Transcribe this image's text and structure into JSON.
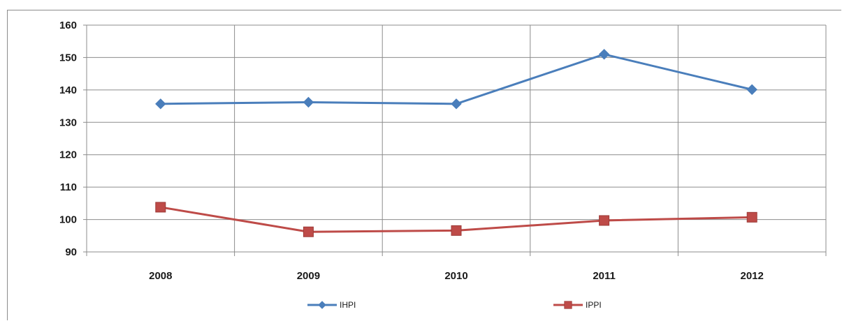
{
  "chart_data": {
    "type": "line",
    "categories": [
      "2008",
      "2009",
      "2010",
      "2011",
      "2012"
    ],
    "series": [
      {
        "name": "IHPI",
        "values": [
          135.7,
          136.2,
          135.7,
          151.0,
          140.1
        ],
        "color": "#4a7ebb",
        "marker": "diamond"
      },
      {
        "name": "IPPI",
        "values": [
          103.8,
          96.2,
          96.6,
          99.7,
          100.7
        ],
        "color": "#be4b48",
        "marker": "square"
      }
    ],
    "ylim": [
      90,
      160
    ],
    "yticks": [
      "90",
      "100",
      "110",
      "120",
      "130",
      "140",
      "150",
      "160"
    ],
    "grid": true,
    "legend": "bottom",
    "title": "",
    "xlabel": "",
    "ylabel": ""
  }
}
